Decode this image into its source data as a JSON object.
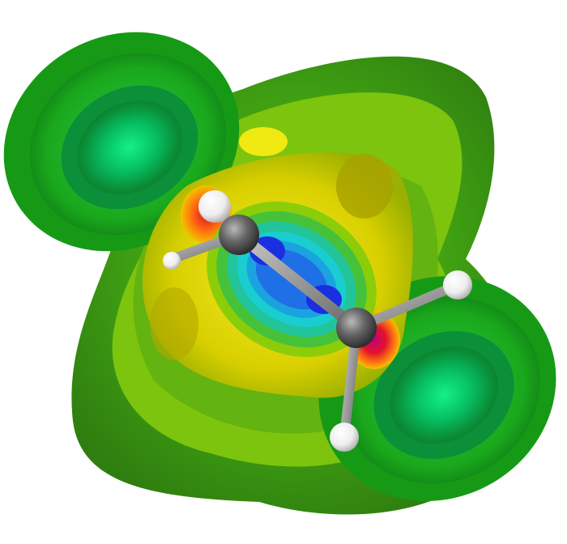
{
  "image": {
    "subject": "molecular-isosurface-render",
    "background_color": "#ffffff"
  },
  "colors": {
    "outer_green": "#2fa81f",
    "lobe_green": "#09d46a",
    "yellow_green": "#8ccd0a",
    "yellow": "#e6d800",
    "orange": "#ff7a12",
    "red": "#e4141a",
    "magenta": "#d1007a",
    "cyan": "#19d3d3",
    "blue": "#1e4fe6",
    "carbon": "#555555",
    "hydrogen": "#f2f2f2",
    "bond": "#8d8d8d"
  },
  "atoms": [
    {
      "element": "C",
      "id": "carbon-1"
    },
    {
      "element": "C",
      "id": "carbon-2"
    },
    {
      "element": "H",
      "id": "hydrogen-1"
    },
    {
      "element": "H",
      "id": "hydrogen-2"
    },
    {
      "element": "H",
      "id": "hydrogen-3"
    },
    {
      "element": "H",
      "id": "hydrogen-4"
    }
  ]
}
